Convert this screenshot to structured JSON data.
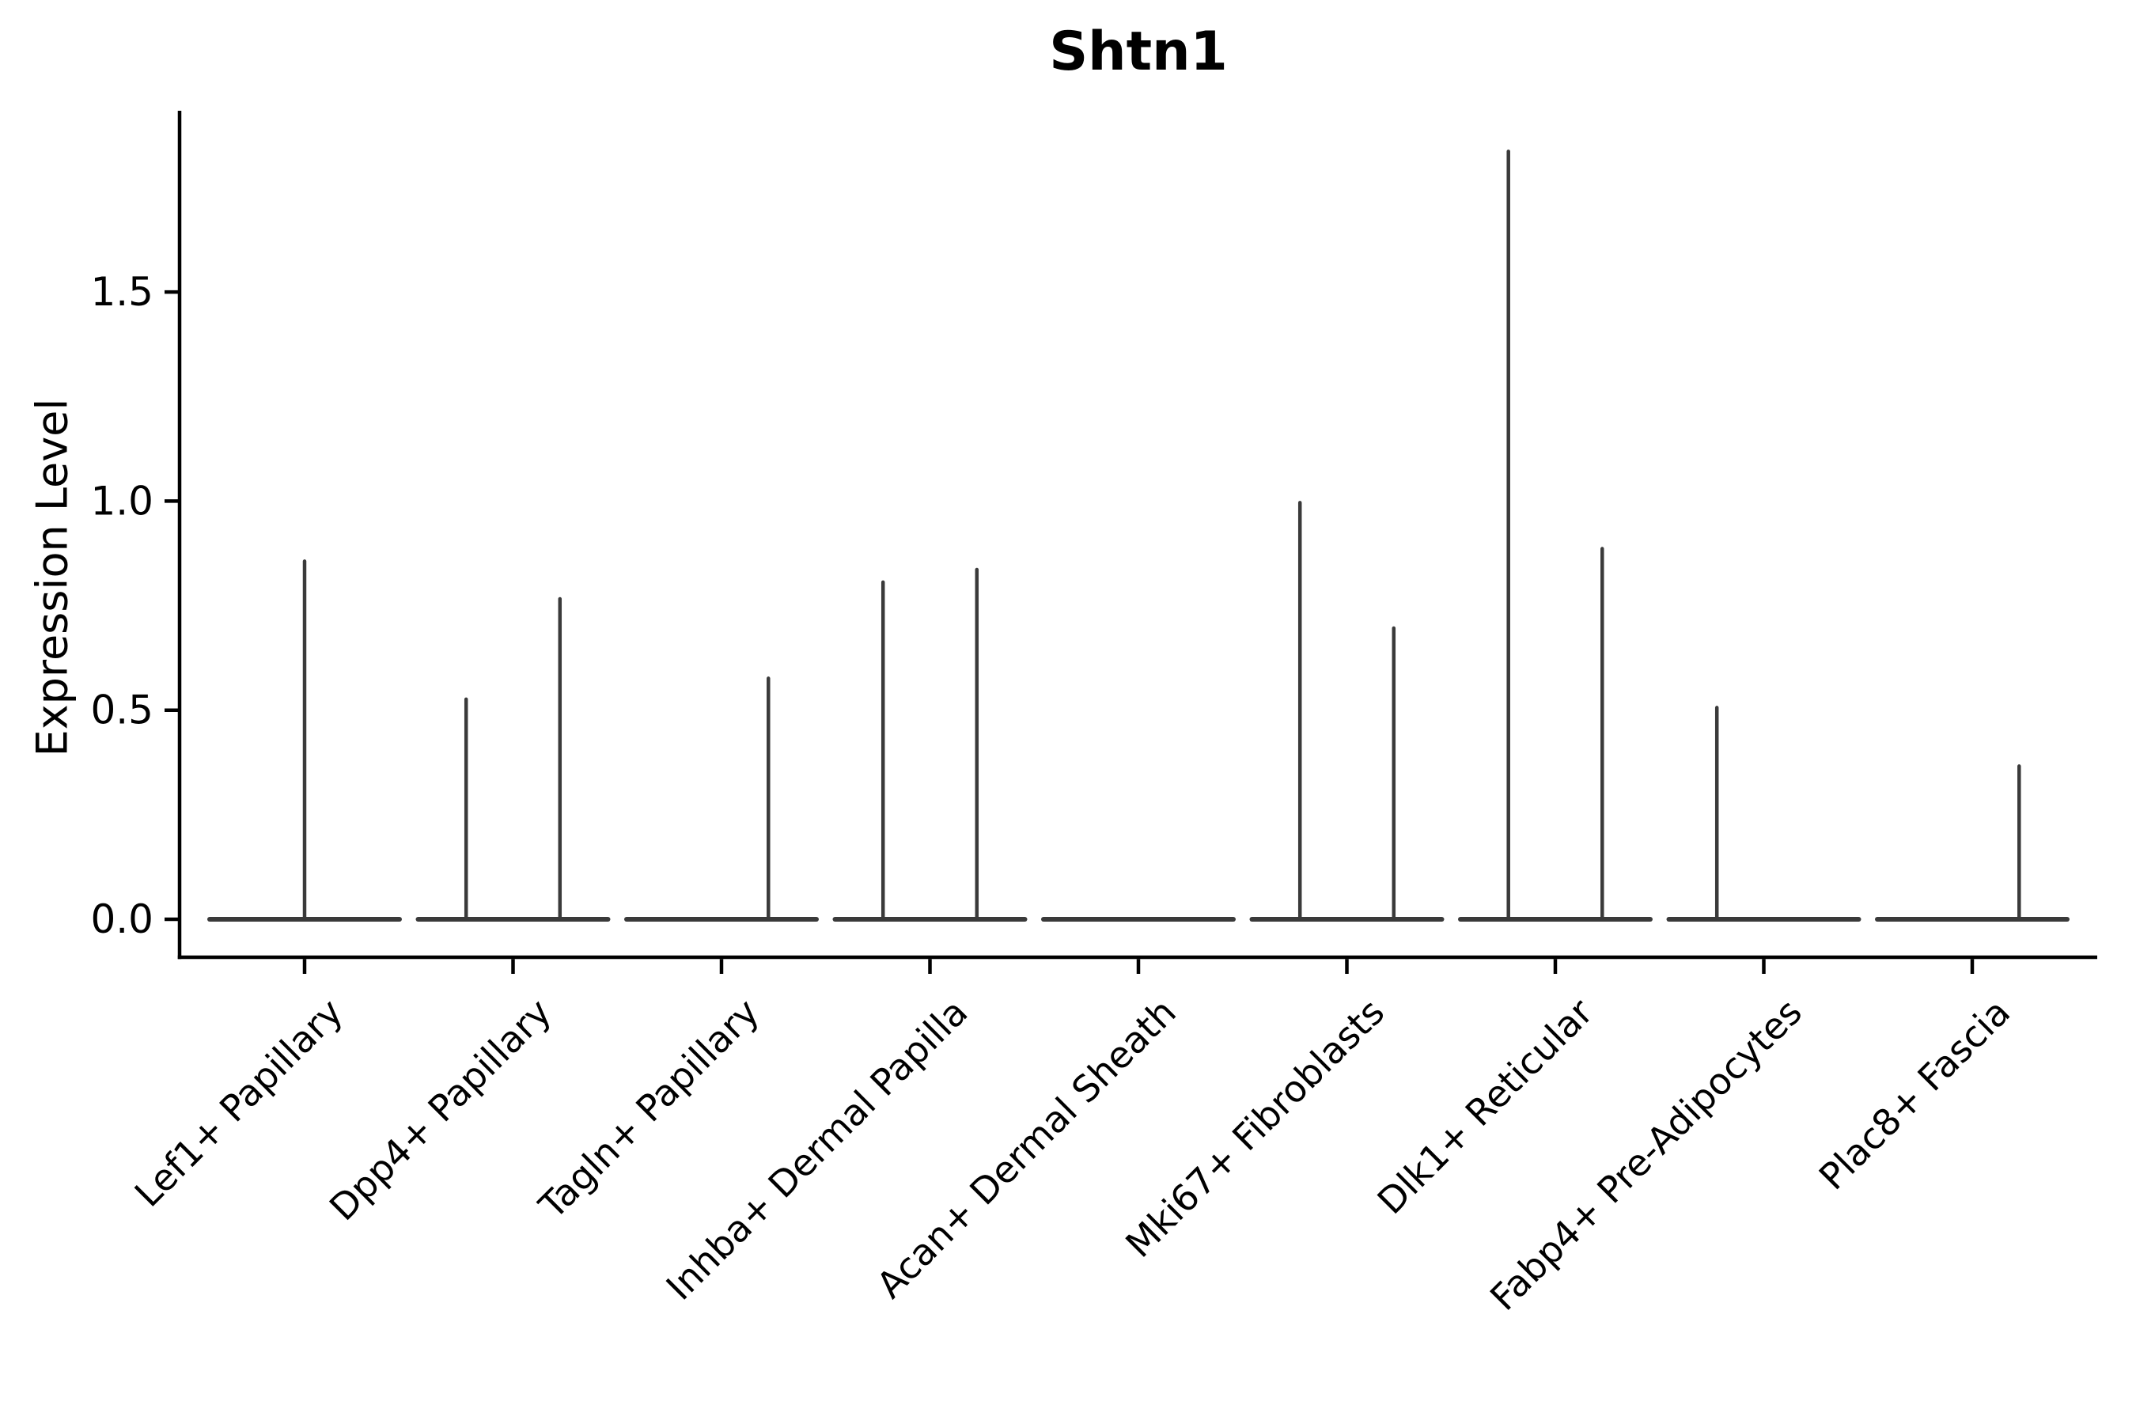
{
  "title": "Shtn1",
  "chart_data": {
    "type": "violin",
    "title": "Shtn1",
    "xlabel": "",
    "ylabel": "Expression Level",
    "yticks": [
      0.0,
      0.5,
      1.0,
      1.5
    ],
    "ylim": [
      -0.09,
      1.93
    ],
    "grid": false,
    "legend": "none",
    "axis_color": "#000000",
    "violin_color": "#3a3a3a",
    "background_color": "#ffffff",
    "categories": [
      "Lef1+ Papillary",
      "Dpp4+ Papillary",
      "Tagln+ Papillary",
      "Inhba+ Dermal Papilla",
      "Acan+ Dermal Sheath",
      "Mki67+ Fibroblasts",
      "Dlk1+ Reticular",
      "Fabp4+ Pre-Adipocytes",
      "Plac8+ Fascia"
    ],
    "series": [
      {
        "category": "Lef1+ Papillary",
        "violins": [
          {
            "slot": "center",
            "offset": 0,
            "width_frac": 0.9,
            "max": 0.86
          }
        ]
      },
      {
        "category": "Dpp4+ Papillary",
        "violins": [
          {
            "slot": "left",
            "offset": -0.225,
            "width_frac": 0.45,
            "max": 0.53
          },
          {
            "slot": "right",
            "offset": 0.225,
            "width_frac": 0.45,
            "max": 0.77
          }
        ]
      },
      {
        "category": "Tagln+ Papillary",
        "violins": [
          {
            "slot": "left",
            "offset": -0.225,
            "width_frac": 0.45,
            "max": 0
          },
          {
            "slot": "right",
            "offset": 0.225,
            "width_frac": 0.45,
            "max": 0.58
          }
        ]
      },
      {
        "category": "Inhba+ Dermal Papilla",
        "violins": [
          {
            "slot": "left",
            "offset": -0.225,
            "width_frac": 0.45,
            "max": 0.81
          },
          {
            "slot": "right",
            "offset": 0.225,
            "width_frac": 0.45,
            "max": 0.84
          }
        ]
      },
      {
        "category": "Acan+ Dermal Sheath",
        "violins": [
          {
            "slot": "left",
            "offset": -0.225,
            "width_frac": 0.45,
            "max": 0
          },
          {
            "slot": "right",
            "offset": 0.225,
            "width_frac": 0.45,
            "max": 0
          }
        ]
      },
      {
        "category": "Mki67+ Fibroblasts",
        "violins": [
          {
            "slot": "left",
            "offset": -0.225,
            "width_frac": 0.45,
            "max": 1.0
          },
          {
            "slot": "right",
            "offset": 0.225,
            "width_frac": 0.45,
            "max": 0.7
          }
        ]
      },
      {
        "category": "Dlk1+ Reticular",
        "violins": [
          {
            "slot": "left",
            "offset": -0.225,
            "width_frac": 0.45,
            "max": 1.84
          },
          {
            "slot": "right",
            "offset": 0.225,
            "width_frac": 0.45,
            "max": 0.89
          }
        ]
      },
      {
        "category": "Fabp4+ Pre-Adipocytes",
        "violins": [
          {
            "slot": "left",
            "offset": -0.225,
            "width_frac": 0.45,
            "max": 0.51
          },
          {
            "slot": "right",
            "offset": 0.225,
            "width_frac": 0.45,
            "max": 0
          }
        ]
      },
      {
        "category": "Plac8+ Fascia",
        "violins": [
          {
            "slot": "left",
            "offset": -0.225,
            "width_frac": 0.45,
            "max": 0
          },
          {
            "slot": "right",
            "offset": 0.225,
            "width_frac": 0.45,
            "max": 0.37
          }
        ]
      }
    ]
  }
}
